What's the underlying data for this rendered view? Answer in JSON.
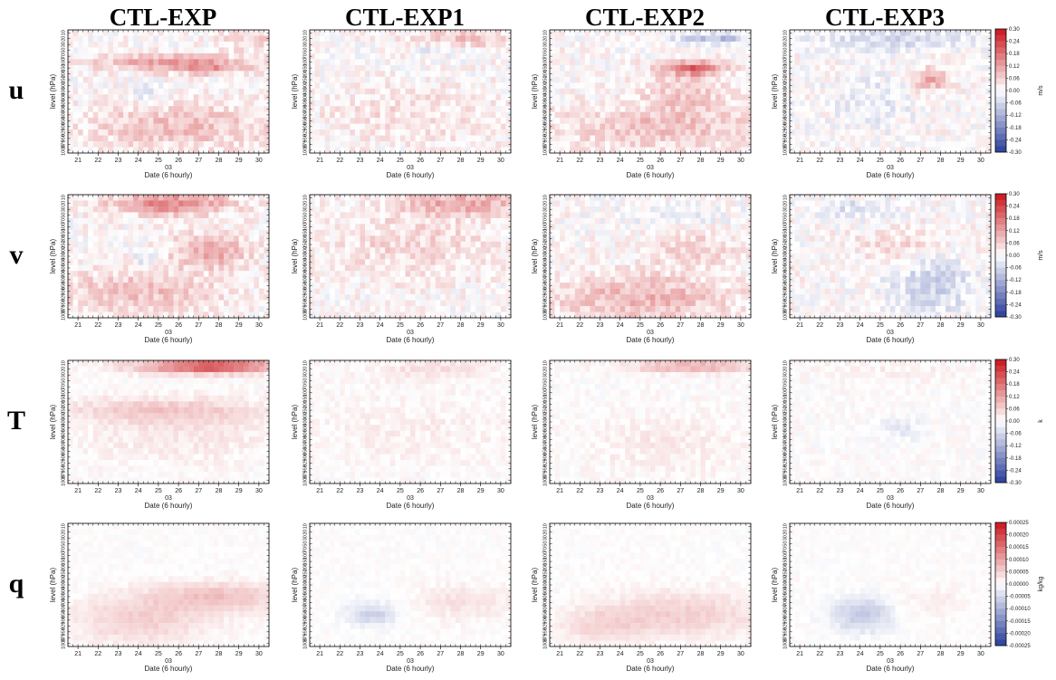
{
  "figure": {
    "columns": [
      "CTL-EXP",
      "CTL-EXP1",
      "CTL-EXP2",
      "CTL-EXP3"
    ],
    "rows": [
      {
        "variable": "u",
        "unit": "m/s",
        "colorbar_ticks": [
          "0.30",
          "0.24",
          "0.18",
          "0.12",
          "0.06",
          "0.00",
          "-0.06",
          "-0.12",
          "-0.18",
          "-0.24",
          "-0.30"
        ]
      },
      {
        "variable": "v",
        "unit": "m/s",
        "colorbar_ticks": [
          "0.30",
          "0.24",
          "0.18",
          "0.12",
          "0.06",
          "0.00",
          "-0.06",
          "-0.12",
          "-0.18",
          "-0.24",
          "-0.30"
        ]
      },
      {
        "variable": "T",
        "unit": "k",
        "colorbar_ticks": [
          "0.30",
          "0.24",
          "0.18",
          "0.12",
          "0.06",
          "0.00",
          "-0.06",
          "-0.12",
          "-0.18",
          "-0.24",
          "-0.30"
        ]
      },
      {
        "variable": "q",
        "unit": "kg/kg",
        "colorbar_ticks": [
          "0.00025",
          "0.00020",
          "0.00015",
          "0.00010",
          "0.00005",
          "0.00000",
          "-0.00005",
          "-0.00010",
          "-0.00015",
          "-0.00020",
          "-0.00025"
        ]
      }
    ],
    "colors": {
      "positive": "#d7191c",
      "negative": "#2c3d9e",
      "neutral": "#ffffff"
    }
  },
  "chart_data": {
    "type": "heatmap",
    "ylabel": "level (hPa)",
    "xlabel": "Date (6 hourly)",
    "month_label": "03",
    "x_ticks": [
      "21",
      "22",
      "23",
      "24",
      "25",
      "26",
      "27",
      "28",
      "29",
      "30"
    ],
    "y_ticks": [
      "10",
      "20",
      "30",
      "50",
      "70",
      "100",
      "150",
      "200",
      "250",
      "300",
      "400",
      "500",
      "600",
      "700",
      "800",
      "850",
      "900",
      "925",
      "950",
      "975",
      "1000"
    ],
    "y_scale": "categorical pressure levels (top 10 hPa, bottom 1000 hPa)",
    "cell_values": "approximate; each panel shows a 40 (6-hourly times, Mar 21-30) x 21 (levels) field with diverging red-white-blue colour scale",
    "panels": [
      {
        "column": "CTL-EXP",
        "variable": "u",
        "pattern": "weak positive values 0.03-0.12 m/s near 100-150 hPa and in lower levels 700-1000 hPa; small negatives near 250-300 hPa around Mar 25-26"
      },
      {
        "column": "CTL-EXP1",
        "variable": "u",
        "pattern": "weak positive values below 0.06 m/s, slightly stronger near 10 hPa late in period"
      },
      {
        "column": "CTL-EXP2",
        "variable": "u",
        "pattern": "positive band near 100-150 hPa peaking ~0.18 m/s around Mar 28; negatives near 10-20 hPa late"
      },
      {
        "column": "CTL-EXP3",
        "variable": "u",
        "pattern": "mixed weak values, small positive patch near 200-250 hPa around Mar 28, weak negatives upper levels"
      },
      {
        "column": "CTL-EXP",
        "variable": "v",
        "pattern": "positive values 0.06-0.18 m/s near 10-50 hPa Mar 25-27 and mid levels Mar 27-28"
      },
      {
        "column": "CTL-EXP1",
        "variable": "v",
        "pattern": "weak positive values, strongest near 10 hPa late Mar 30"
      },
      {
        "column": "CTL-EXP2",
        "variable": "v",
        "pattern": "weak positive values mid and lower levels"
      },
      {
        "column": "CTL-EXP3",
        "variable": "v",
        "pattern": "weak negatives in lower levels Mar 27-29, small positives mid levels"
      },
      {
        "column": "CTL-EXP",
        "variable": "T",
        "pattern": "positive 0.12-0.24 K at 10-20 hPa from Mar 26 onward; weak positive band near 250-300 hPa"
      },
      {
        "column": "CTL-EXP1",
        "variable": "T",
        "pattern": "very weak positive values"
      },
      {
        "column": "CTL-EXP2",
        "variable": "T",
        "pattern": "weak positive values near 10 hPa after Mar 26"
      },
      {
        "column": "CTL-EXP3",
        "variable": "T",
        "pattern": "near zero, weak negatives around 400 hPa Mar 24-25"
      },
      {
        "column": "CTL-EXP",
        "variable": "q",
        "pattern": "weak positive values ~0.00003 kg/kg in lower levels 600-1000 hPa"
      },
      {
        "column": "CTL-EXP1",
        "variable": "q",
        "pattern": "weak negatives ~-0.00004 kg/kg near 850 hPa Mar 24-25"
      },
      {
        "column": "CTL-EXP2",
        "variable": "q",
        "pattern": "weak positive values lower levels"
      },
      {
        "column": "CTL-EXP3",
        "variable": "q",
        "pattern": "weak negatives ~-0.00005 kg/kg near 800-900 hPa Mar 24-25"
      }
    ]
  }
}
